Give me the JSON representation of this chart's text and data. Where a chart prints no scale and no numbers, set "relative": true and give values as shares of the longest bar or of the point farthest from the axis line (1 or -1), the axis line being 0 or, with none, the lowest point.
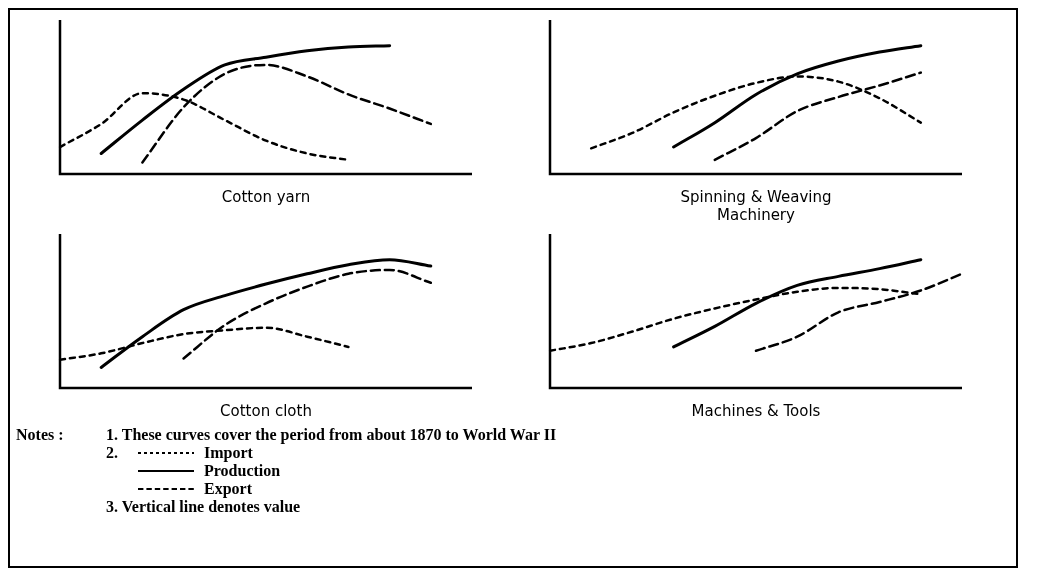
{
  "chart_data": [
    {
      "type": "line",
      "title": "Cotton yarn",
      "relative": true,
      "categories": [
        null,
        null,
        null,
        null,
        null,
        null,
        null,
        null,
        null,
        null,
        null
      ],
      "legend": "bottom",
      "annotations": [
        "Notes :",
        "1.  These curves cover the period from about 1870 to World War II",
        "2.",
        "3.  Vertical line denotes value"
      ],
      "series": [
        {
          "name": "Import",
          "color": "#000000",
          "line_style": "dotted",
          "values": [
            0.21,
            0.39,
            0.63,
            0.58,
            0.42,
            0.26,
            0.16,
            0.11,
            null,
            null,
            null
          ]
        },
        {
          "name": "Production",
          "color": "#000000",
          "line_style": "solid",
          "values": [
            null,
            0.16,
            0.42,
            0.66,
            0.85,
            0.91,
            0.96,
            0.99,
            1.0,
            null,
            null
          ]
        },
        {
          "name": "Export",
          "color": "#000000",
          "line_style": "dashed",
          "values": [
            null,
            null,
            0.09,
            0.52,
            0.78,
            0.85,
            0.76,
            0.62,
            0.51,
            0.39,
            null
          ]
        }
      ]
    },
    {
      "type": "line",
      "title": "Spinning & Weaving Machinery",
      "relative": true,
      "categories": [
        null,
        null,
        null,
        null,
        null,
        null,
        null,
        null,
        null,
        null,
        null
      ],
      "series": [
        {
          "color": "#000000",
          "line_style": "dotted",
          "values": [
            null,
            0.2,
            0.32,
            0.48,
            0.61,
            0.71,
            0.76,
            0.72,
            0.59,
            0.4,
            null
          ]
        },
        {
          "color": "#000000",
          "line_style": "solid",
          "values": [
            null,
            null,
            null,
            0.21,
            0.4,
            0.62,
            0.78,
            0.88,
            0.95,
            1.0,
            null
          ]
        },
        {
          "color": "#000000",
          "line_style": "dashed",
          "values": [
            null,
            null,
            null,
            null,
            0.11,
            0.28,
            0.49,
            0.6,
            0.69,
            0.79,
            null
          ]
        }
      ]
    },
    {
      "type": "line",
      "title": "Cotton cloth",
      "relative": true,
      "categories": [
        null,
        null,
        null,
        null,
        null,
        null,
        null,
        null,
        null,
        null,
        null
      ],
      "series": [
        {
          "color": "#000000",
          "line_style": "dotted",
          "values": [
            0.22,
            0.27,
            0.35,
            0.42,
            0.45,
            0.47,
            0.4,
            0.32,
            null,
            null,
            null
          ]
        },
        {
          "color": "#000000",
          "line_style": "solid",
          "values": [
            null,
            0.16,
            0.4,
            0.61,
            0.72,
            0.81,
            0.89,
            0.96,
            1.0,
            0.95,
            null
          ]
        },
        {
          "color": "#000000",
          "line_style": "dashed",
          "values": [
            null,
            null,
            null,
            0.23,
            0.49,
            0.66,
            0.79,
            0.89,
            0.92,
            0.82,
            null
          ]
        }
      ]
    },
    {
      "type": "line",
      "title": "Machines & Tools",
      "relative": true,
      "categories": [
        null,
        null,
        null,
        null,
        null,
        null,
        null,
        null,
        null,
        null,
        null
      ],
      "series": [
        {
          "color": "#000000",
          "line_style": "dotted",
          "values": [
            0.29,
            0.35,
            0.44,
            0.54,
            0.62,
            0.69,
            0.75,
            0.78,
            0.77,
            0.73,
            null
          ]
        },
        {
          "color": "#000000",
          "line_style": "solid",
          "values": [
            null,
            null,
            null,
            0.32,
            0.48,
            0.66,
            0.8,
            0.87,
            0.93,
            1.0,
            null
          ]
        },
        {
          "color": "#000000",
          "line_style": "dashed",
          "values": [
            null,
            null,
            null,
            null,
            null,
            0.29,
            0.4,
            0.59,
            0.67,
            0.76,
            0.89
          ]
        }
      ]
    }
  ]
}
